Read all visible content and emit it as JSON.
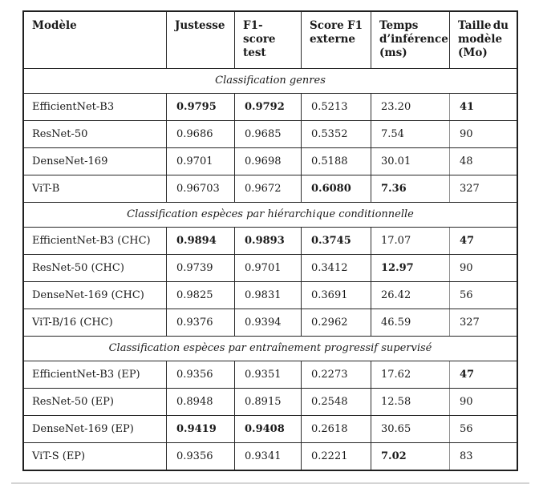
{
  "page": {
    "background": "#ffffff",
    "text_color": "#1a1a1a",
    "border_color": "#1f1f1f"
  },
  "table": {
    "headers": [
      {
        "lines": [
          "Modèle"
        ]
      },
      {
        "lines": [
          "Justesse"
        ]
      },
      {
        "lines": [
          "F1-score",
          "test"
        ]
      },
      {
        "lines": [
          [
            "Score",
            "F1"
          ],
          "externe"
        ]
      },
      {
        "lines": [
          "Temps",
          "d’inférence",
          "(ms)"
        ]
      },
      {
        "lines": [
          [
            "Taille",
            "du"
          ],
          "modèle",
          "(Mo)"
        ]
      }
    ],
    "sections": [
      {
        "title": "Classification genres",
        "rows": [
          {
            "model": "EfficientNet-B3",
            "values": [
              {
                "v": "0.9795",
                "bold": true
              },
              {
                "v": "0.9792",
                "bold": true
              },
              {
                "v": "0.5213",
                "bold": false
              },
              {
                "v": "23.20",
                "bold": false
              },
              {
                "v": "41",
                "bold": true
              }
            ]
          },
          {
            "model": "ResNet-50",
            "values": [
              {
                "v": "0.9686",
                "bold": false
              },
              {
                "v": "0.9685",
                "bold": false
              },
              {
                "v": "0.5352",
                "bold": false
              },
              {
                "v": "7.54",
                "bold": false
              },
              {
                "v": "90",
                "bold": false
              }
            ]
          },
          {
            "model": "DenseNet-169",
            "values": [
              {
                "v": "0.9701",
                "bold": false
              },
              {
                "v": "0.9698",
                "bold": false
              },
              {
                "v": "0.5188",
                "bold": false
              },
              {
                "v": "30.01",
                "bold": false
              },
              {
                "v": "48",
                "bold": false
              }
            ]
          },
          {
            "model": "ViT-B",
            "values": [
              {
                "v": "0.96703",
                "bold": false
              },
              {
                "v": "0.9672",
                "bold": false
              },
              {
                "v": "0.6080",
                "bold": true
              },
              {
                "v": "7.36",
                "bold": true
              },
              {
                "v": "327",
                "bold": false
              }
            ]
          }
        ]
      },
      {
        "title": "Classification espèces par hiérarchique conditionnelle",
        "rows": [
          {
            "model": "EfficientNet-B3 (CHC)",
            "values": [
              {
                "v": "0.9894",
                "bold": true
              },
              {
                "v": "0.9893",
                "bold": true
              },
              {
                "v": "0.3745",
                "bold": true
              },
              {
                "v": "17.07",
                "bold": false
              },
              {
                "v": "47",
                "bold": true
              }
            ]
          },
          {
            "model": "ResNet-50 (CHC)",
            "values": [
              {
                "v": "0.9739",
                "bold": false
              },
              {
                "v": "0.9701",
                "bold": false
              },
              {
                "v": "0.3412",
                "bold": false
              },
              {
                "v": "12.97",
                "bold": true
              },
              {
                "v": "90",
                "bold": false
              }
            ]
          },
          {
            "model": "DenseNet-169 (CHC)",
            "values": [
              {
                "v": "0.9825",
                "bold": false
              },
              {
                "v": "0.9831",
                "bold": false
              },
              {
                "v": "0.3691",
                "bold": false
              },
              {
                "v": "26.42",
                "bold": false
              },
              {
                "v": "56",
                "bold": false
              }
            ]
          },
          {
            "model": "ViT-B/16 (CHC)",
            "values": [
              {
                "v": "0.9376",
                "bold": false
              },
              {
                "v": "0.9394",
                "bold": false
              },
              {
                "v": "0.2962",
                "bold": false
              },
              {
                "v": "46.59",
                "bold": false
              },
              {
                "v": "327",
                "bold": false
              }
            ]
          }
        ]
      },
      {
        "title": "Classification espèces par entraînement progressif supervisé",
        "rows": [
          {
            "model": "EfficientNet-B3 (EP)",
            "values": [
              {
                "v": "0.9356",
                "bold": false
              },
              {
                "v": "0.9351",
                "bold": false
              },
              {
                "v": "0.2273",
                "bold": false
              },
              {
                "v": "17.62",
                "bold": false
              },
              {
                "v": "47",
                "bold": true
              }
            ]
          },
          {
            "model": "ResNet-50 (EP)",
            "values": [
              {
                "v": "0.8948",
                "bold": false
              },
              {
                "v": "0.8915",
                "bold": false
              },
              {
                "v": "0.2548",
                "bold": false
              },
              {
                "v": "12.58",
                "bold": false
              },
              {
                "v": "90",
                "bold": false
              }
            ]
          },
          {
            "model": "DenseNet-169 (EP)",
            "values": [
              {
                "v": "0.9419",
                "bold": true
              },
              {
                "v": "0.9408",
                "bold": true
              },
              {
                "v": "0.2618",
                "bold": false
              },
              {
                "v": "30.65",
                "bold": false
              },
              {
                "v": "56",
                "bold": false
              }
            ]
          },
          {
            "model": "ViT-S (EP)",
            "values": [
              {
                "v": "0.9356",
                "bold": false
              },
              {
                "v": "0.9341",
                "bold": false
              },
              {
                "v": "0.2221",
                "bold": false
              },
              {
                "v": "7.02",
                "bold": true
              },
              {
                "v": "83",
                "bold": false
              }
            ]
          }
        ]
      }
    ]
  }
}
